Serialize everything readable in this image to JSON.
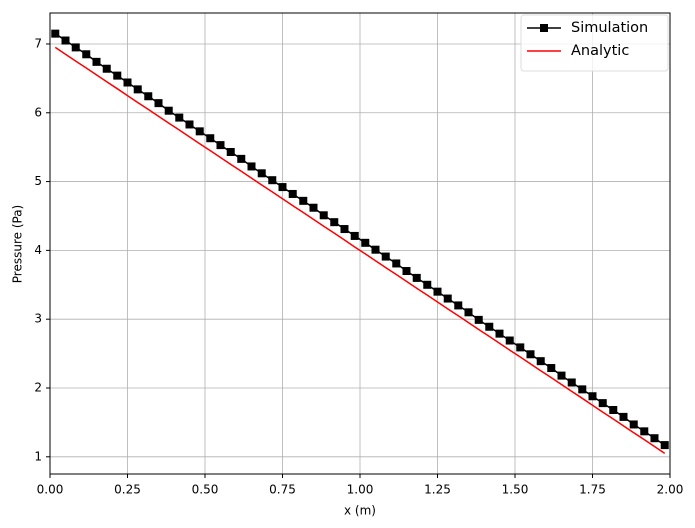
{
  "chart_data": {
    "type": "line",
    "x_label": "x (m)",
    "y_label": "Pressure (Pa)",
    "x": [
      0.017,
      0.05,
      0.083,
      0.117,
      0.15,
      0.183,
      0.217,
      0.25,
      0.283,
      0.317,
      0.35,
      0.383,
      0.417,
      0.45,
      0.483,
      0.517,
      0.55,
      0.583,
      0.617,
      0.65,
      0.683,
      0.717,
      0.75,
      0.783,
      0.817,
      0.85,
      0.883,
      0.917,
      0.95,
      0.983,
      1.017,
      1.05,
      1.083,
      1.117,
      1.15,
      1.183,
      1.217,
      1.25,
      1.283,
      1.317,
      1.35,
      1.383,
      1.417,
      1.45,
      1.483,
      1.517,
      1.55,
      1.583,
      1.617,
      1.65,
      1.683,
      1.717,
      1.75,
      1.783,
      1.817,
      1.85,
      1.883,
      1.917,
      1.95,
      1.983
    ],
    "series": [
      {
        "name": "Simulation",
        "color": "#000000",
        "marker": "square",
        "values": [
          7.15,
          7.05,
          6.95,
          6.85,
          6.74,
          6.64,
          6.54,
          6.44,
          6.34,
          6.24,
          6.14,
          6.03,
          5.93,
          5.83,
          5.73,
          5.63,
          5.53,
          5.43,
          5.33,
          5.22,
          5.12,
          5.02,
          4.92,
          4.82,
          4.72,
          4.62,
          4.51,
          4.41,
          4.31,
          4.21,
          4.11,
          4.01,
          3.91,
          3.81,
          3.7,
          3.6,
          3.5,
          3.4,
          3.3,
          3.2,
          3.1,
          2.99,
          2.89,
          2.79,
          2.69,
          2.59,
          2.49,
          2.39,
          2.29,
          2.18,
          2.08,
          1.98,
          1.88,
          1.78,
          1.68,
          1.58,
          1.47,
          1.37,
          1.27,
          1.17
        ]
      },
      {
        "name": "Analytic",
        "color": "#ff0000",
        "values": [
          6.95,
          6.85,
          6.75,
          6.65,
          6.55,
          6.45,
          6.35,
          6.25,
          6.15,
          6.05,
          5.95,
          5.85,
          5.75,
          5.65,
          5.55,
          5.45,
          5.35,
          5.25,
          5.15,
          5.05,
          4.95,
          4.85,
          4.75,
          4.65,
          4.55,
          4.45,
          4.35,
          4.25,
          4.15,
          4.05,
          3.95,
          3.85,
          3.75,
          3.65,
          3.55,
          3.45,
          3.35,
          3.25,
          3.15,
          3.05,
          2.95,
          2.85,
          2.75,
          2.65,
          2.55,
          2.45,
          2.35,
          2.25,
          2.15,
          2.05,
          1.95,
          1.85,
          1.75,
          1.65,
          1.55,
          1.45,
          1.35,
          1.25,
          1.15,
          1.05
        ]
      }
    ],
    "xlim": [
      0,
      2
    ],
    "ylim": [
      0.75,
      7.45
    ],
    "xticks": [
      {
        "value": 0,
        "label": "0.00"
      },
      {
        "value": 0.25,
        "label": "0.25"
      },
      {
        "value": 0.5,
        "label": "0.50"
      },
      {
        "value": 0.75,
        "label": "0.75"
      },
      {
        "value": 1,
        "label": "1.00"
      },
      {
        "value": 1.25,
        "label": "1.25"
      },
      {
        "value": 1.5,
        "label": "1.50"
      },
      {
        "value": 1.75,
        "label": "1.75"
      },
      {
        "value": 2,
        "label": "2.00"
      }
    ],
    "yticks": [
      1,
      2,
      3,
      4,
      5,
      6,
      7
    ],
    "grid": true,
    "legend": "upper right"
  }
}
